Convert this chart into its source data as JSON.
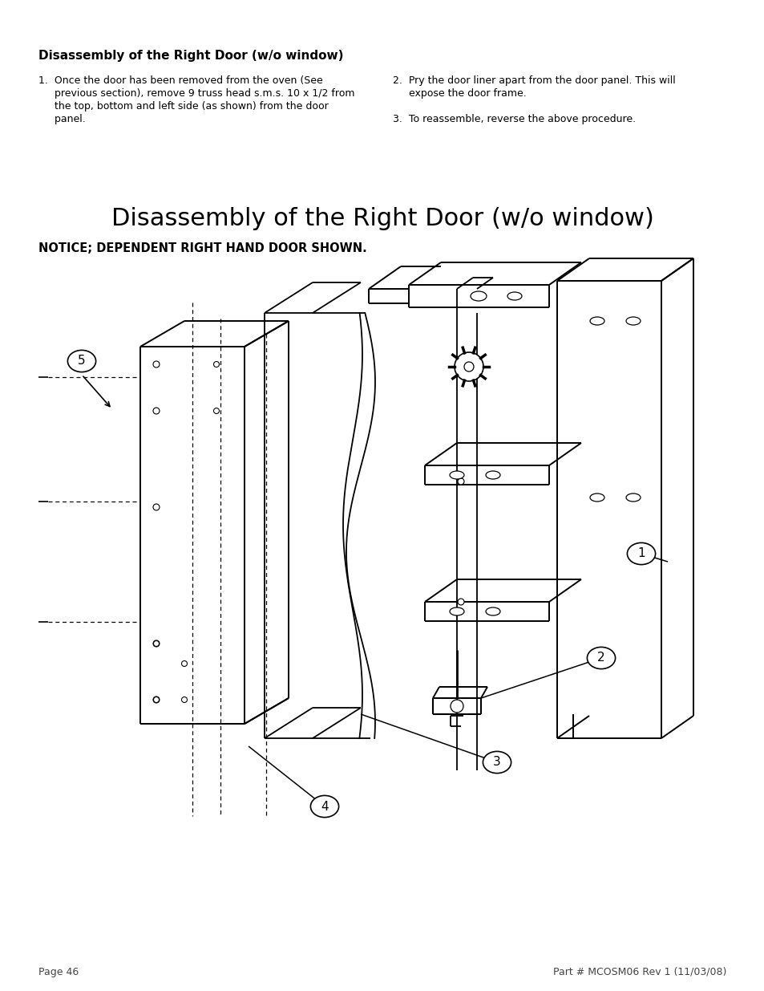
{
  "bg_color": "#ffffff",
  "page_title": "Disassembly of the Right Door (w/o window)",
  "notice_text": "NOTICE; DEPENDENT RIGHT HAND DOOR SHOWN.",
  "section_heading": "Disassembly of the Right Door (w/o window)",
  "left_col_line1": "1.  Once the door has been removed from the oven (See",
  "left_col_line2": "     previous section), remove 9 truss head s.m.s. 10 x 1/2 from",
  "left_col_line3": "     the top, bottom and left side (as shown) from the door",
  "left_col_line4": "     panel.",
  "right_col_line1": "2.  Pry the door liner apart from the door panel. This will",
  "right_col_line2": "     expose the door frame.",
  "right_col_line3": "3.  To reassemble, reverse the above procedure.",
  "footer_left": "Page 46",
  "footer_right": "Part # MCOSM06 Rev 1 (11/03/08)"
}
